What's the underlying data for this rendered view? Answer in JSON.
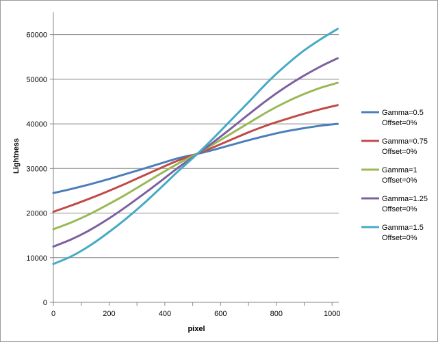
{
  "chart_data": {
    "type": "line",
    "title": "",
    "xlabel": "pixel",
    "ylabel": "Lightness",
    "xlim": [
      0,
      1024
    ],
    "ylim": [
      0,
      65000
    ],
    "xticks": [
      0,
      200,
      400,
      600,
      800,
      1000
    ],
    "yticks": [
      0,
      10000,
      20000,
      30000,
      40000,
      50000,
      60000
    ],
    "grid": "horizontal",
    "legend": "right",
    "x": [
      0,
      64,
      128,
      192,
      256,
      320,
      384,
      448,
      512,
      576,
      640,
      704,
      768,
      832,
      896,
      960,
      1020
    ],
    "series": [
      {
        "name": "Gamma=0.5",
        "name_line2": "Offset=0%",
        "color": "#4a7ebb",
        "values": [
          24500,
          25400,
          26400,
          27500,
          28700,
          29900,
          31100,
          32300,
          33200,
          34200,
          35300,
          36400,
          37400,
          38300,
          39000,
          39600,
          40000
        ]
      },
      {
        "name": "Gamma=0.75",
        "name_line2": "Offset=0%",
        "color": "#be4b48",
        "values": [
          20300,
          21700,
          23200,
          24800,
          26500,
          28300,
          30100,
          31800,
          33200,
          34800,
          36500,
          38200,
          39700,
          41000,
          42200,
          43300,
          44200
        ]
      },
      {
        "name": "Gamma=1",
        "name_line2": "Offset=0%",
        "color": "#98b954",
        "values": [
          16400,
          17900,
          19700,
          21800,
          24000,
          26400,
          28800,
          31100,
          33200,
          35500,
          37900,
          40300,
          42700,
          44800,
          46600,
          48100,
          49200
        ]
      },
      {
        "name": "Gamma=1.25",
        "name_line2": "Offset=0%",
        "color": "#7d60a0",
        "values": [
          12500,
          14100,
          16100,
          18500,
          21200,
          24100,
          27100,
          30200,
          33000,
          36000,
          39100,
          42300,
          45400,
          48200,
          50700,
          52900,
          54700
        ]
      },
      {
        "name": "Gamma=1.5",
        "name_line2": "Offset=0%",
        "color": "#46aac5",
        "values": [
          8600,
          10300,
          12600,
          15400,
          18500,
          21900,
          25600,
          29400,
          33000,
          36900,
          41000,
          45100,
          49300,
          53000,
          56300,
          59000,
          61300
        ]
      }
    ]
  }
}
